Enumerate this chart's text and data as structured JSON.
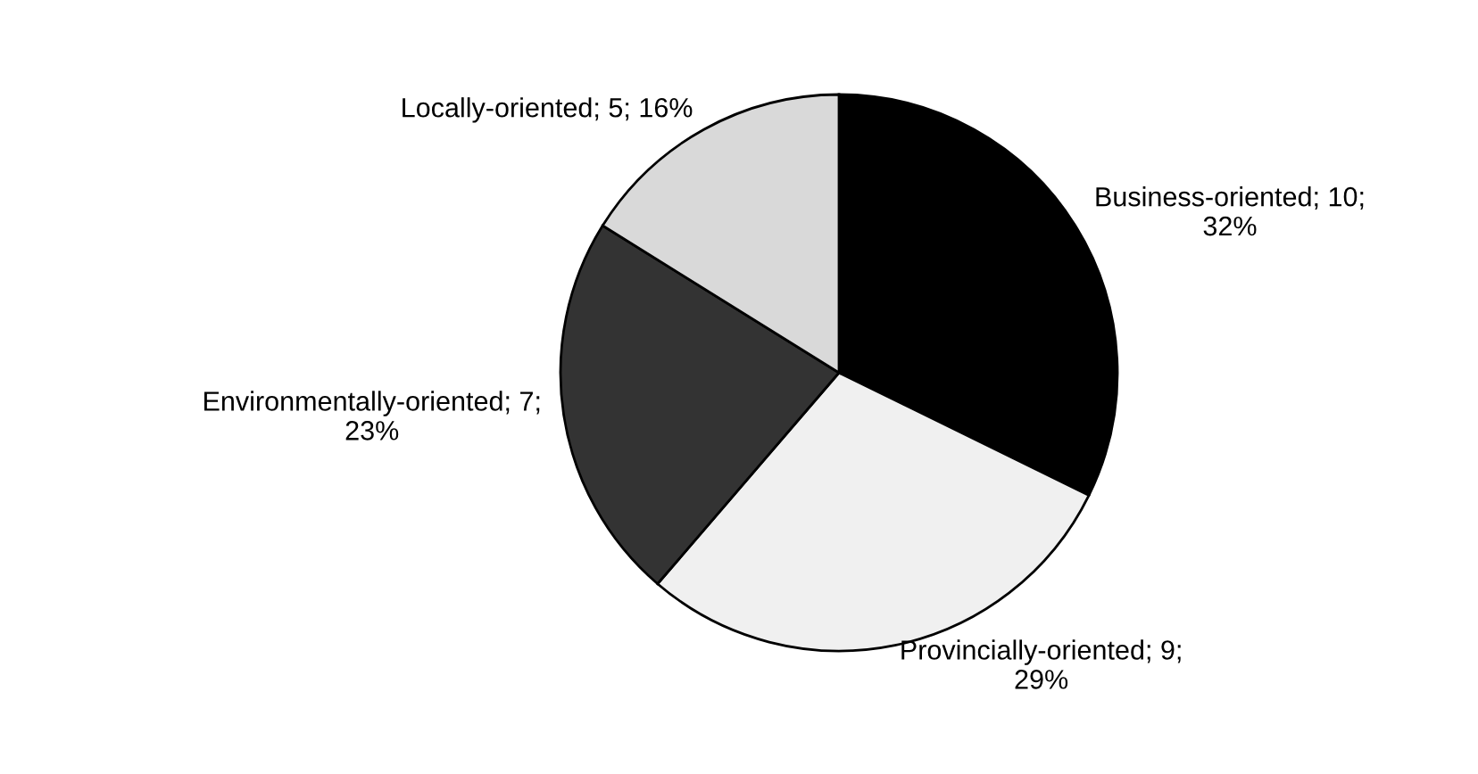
{
  "chart_data": {
    "type": "pie",
    "categories": [
      "Business-oriented",
      "Provincially-oriented",
      "Environmentally-oriented",
      "Locally-oriented"
    ],
    "values": [
      10,
      9,
      7,
      5
    ],
    "value_labels": [
      "10;\n32%",
      "9;\n29%",
      "7;\n23%",
      "5; 16%"
    ],
    "colors": [
      "#000000",
      "#f0f0f0",
      "#333333",
      "#d9d9d9"
    ],
    "legend": false
  }
}
